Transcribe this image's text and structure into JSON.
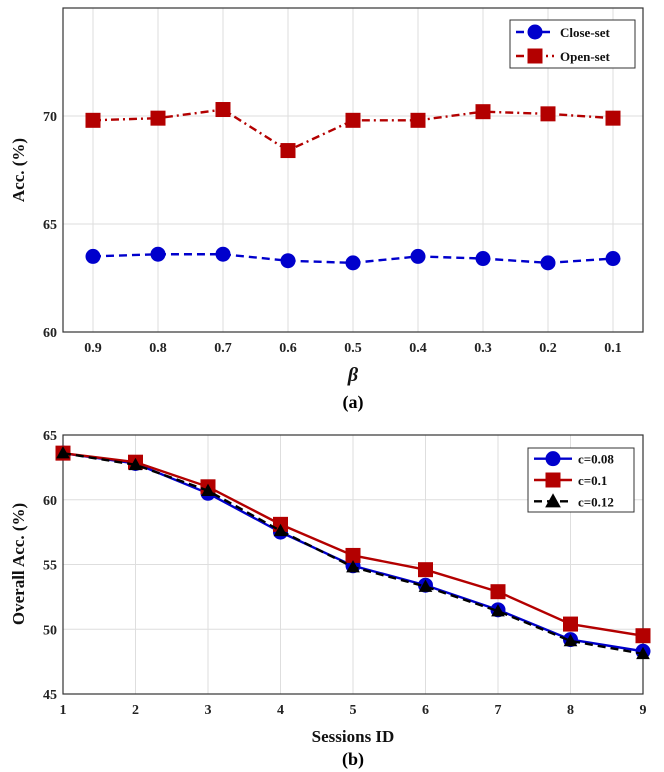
{
  "chart_data": [
    {
      "type": "line",
      "caption": "(a)",
      "xlabel": "β",
      "ylabel": "Acc. (%)",
      "categories": [
        "0.9",
        "0.8",
        "0.7",
        "0.6",
        "0.5",
        "0.4",
        "0.3",
        "0.2",
        "0.1"
      ],
      "ylim": [
        60,
        75
      ],
      "yticks": [
        60,
        65,
        70
      ],
      "grid": true,
      "legend_position": "top-right",
      "series": [
        {
          "name": "Close-set",
          "color": "#0000cc",
          "marker": "circle",
          "dash": "dashed",
          "values": [
            63.5,
            63.6,
            63.6,
            63.3,
            63.2,
            63.5,
            63.4,
            63.2,
            63.4
          ]
        },
        {
          "name": "Open-set",
          "color": "#b30000",
          "marker": "square",
          "dash": "dashdot",
          "values": [
            69.8,
            69.9,
            70.3,
            68.4,
            69.8,
            69.8,
            70.2,
            70.1,
            69.9
          ]
        }
      ]
    },
    {
      "type": "line",
      "caption": "(b)",
      "xlabel": "Sessions ID",
      "ylabel": "Overall Acc. (%)",
      "categories": [
        "1",
        "2",
        "3",
        "4",
        "5",
        "6",
        "7",
        "8",
        "9"
      ],
      "ylim": [
        45,
        65
      ],
      "yticks": [
        45,
        50,
        55,
        60,
        65
      ],
      "grid": true,
      "legend_position": "top-right",
      "series": [
        {
          "name": "c=0.08",
          "color": "#0000cc",
          "marker": "circle",
          "dash": "solid",
          "values": [
            63.6,
            62.8,
            60.5,
            57.5,
            54.9,
            53.4,
            51.5,
            49.2,
            48.3
          ]
        },
        {
          "name": "c=0.1",
          "color": "#b30000",
          "marker": "square",
          "dash": "solid",
          "values": [
            63.6,
            62.9,
            61.0,
            58.1,
            55.7,
            54.6,
            52.9,
            50.4,
            49.5
          ]
        },
        {
          "name": "c=0.12",
          "color": "#000000",
          "marker": "triangle",
          "dash": "dashed",
          "values": [
            63.6,
            62.7,
            60.7,
            57.6,
            54.8,
            53.3,
            51.4,
            49.1,
            48.1
          ]
        }
      ]
    }
  ]
}
